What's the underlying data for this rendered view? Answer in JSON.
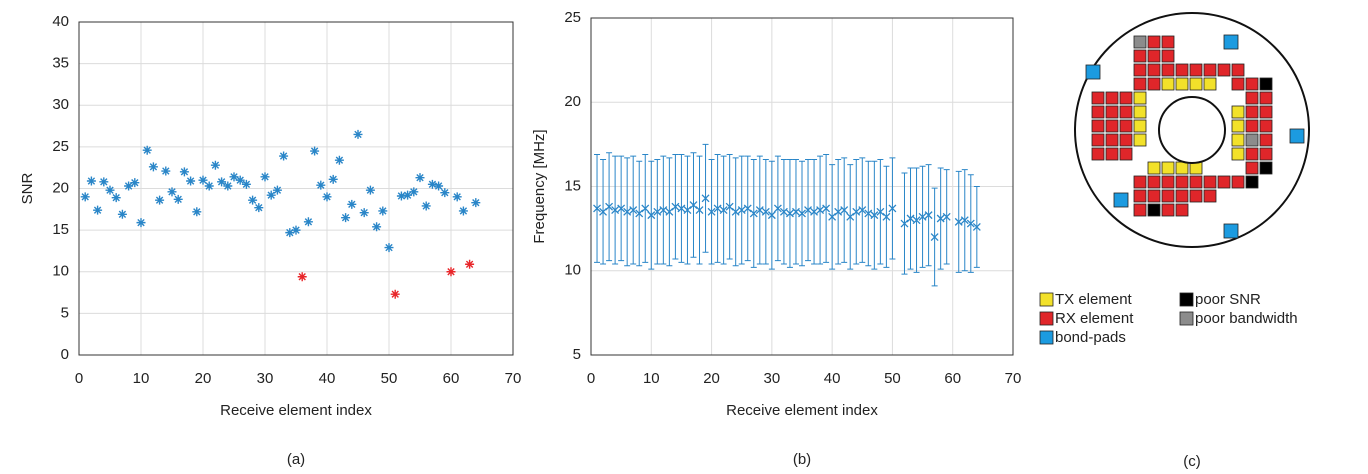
{
  "chart_data": [
    {
      "type": "scatter",
      "caption": "(a)",
      "x_label": "Receive element index",
      "y_label": "SNR",
      "xlim": [
        0,
        70
      ],
      "xticks": [
        0,
        10,
        20,
        30,
        40,
        50,
        60,
        70
      ],
      "ylim": [
        0,
        40
      ],
      "yticks": [
        0,
        5,
        10,
        15,
        20,
        25,
        30,
        35,
        40
      ],
      "grid": true,
      "series": [
        {
          "color": "#2a86c8",
          "x": [
            1,
            2,
            3,
            4,
            5,
            6,
            7,
            8,
            9,
            10,
            11,
            12,
            13,
            14,
            15,
            16,
            17,
            18,
            19,
            20,
            21,
            22,
            23,
            24,
            25,
            26,
            27,
            28,
            29,
            30,
            31,
            32,
            33,
            34,
            35,
            37,
            38,
            39,
            40,
            41,
            42,
            43,
            44,
            45,
            46,
            47,
            48,
            49,
            50,
            52,
            53,
            54,
            55,
            56,
            57,
            58,
            59,
            61,
            62,
            64
          ],
          "values": [
            19.0,
            20.9,
            17.4,
            20.8,
            19.8,
            18.9,
            16.9,
            20.3,
            20.7,
            15.9,
            24.6,
            22.6,
            18.6,
            22.1,
            19.6,
            18.7,
            22.0,
            20.9,
            17.2,
            21.0,
            20.3,
            22.8,
            20.8,
            20.3,
            21.4,
            21.0,
            20.5,
            18.6,
            17.7,
            21.4,
            19.2,
            19.8,
            23.9,
            14.7,
            15.0,
            16.0,
            24.5,
            20.4,
            19.0,
            21.1,
            23.4,
            16.5,
            18.1,
            26.5,
            17.1,
            19.8,
            15.4,
            17.3,
            12.9,
            19.1,
            19.2,
            19.6,
            21.3,
            17.9,
            20.5,
            20.3,
            19.5,
            19.0,
            17.3,
            18.3
          ]
        },
        {
          "color": "#e8262a",
          "x": [
            36,
            51,
            60,
            63
          ],
          "values": [
            9.4,
            7.3,
            10.0,
            10.9
          ]
        }
      ]
    },
    {
      "type": "errorbar",
      "caption": "(b)",
      "x_label": "Receive element index",
      "y_label": "Frequency [MHz]",
      "xlim": [
        0,
        70
      ],
      "xticks": [
        0,
        10,
        20,
        30,
        40,
        50,
        60,
        70
      ],
      "ylim": [
        5,
        25
      ],
      "yticks": [
        5,
        10,
        15,
        20,
        25
      ],
      "grid": true,
      "series": [
        {
          "color": "#2a86c8",
          "x": [
            1,
            2,
            3,
            4,
            5,
            6,
            7,
            8,
            9,
            10,
            11,
            12,
            13,
            14,
            15,
            16,
            17,
            18,
            19,
            20,
            21,
            22,
            23,
            24,
            25,
            26,
            27,
            28,
            29,
            30,
            31,
            32,
            33,
            34,
            35,
            36,
            37,
            38,
            39,
            40,
            41,
            42,
            43,
            44,
            45,
            46,
            47,
            48,
            49,
            50,
            52,
            53,
            54,
            55,
            56,
            57,
            58,
            59,
            61,
            62,
            63,
            64
          ],
          "values": [
            13.7,
            13.5,
            13.8,
            13.6,
            13.7,
            13.5,
            13.6,
            13.4,
            13.7,
            13.3,
            13.5,
            13.6,
            13.5,
            13.8,
            13.7,
            13.6,
            13.9,
            13.6,
            14.3,
            13.5,
            13.7,
            13.6,
            13.8,
            13.5,
            13.6,
            13.7,
            13.4,
            13.6,
            13.5,
            13.3,
            13.7,
            13.5,
            13.4,
            13.5,
            13.4,
            13.6,
            13.5,
            13.6,
            13.7,
            13.2,
            13.5,
            13.6,
            13.2,
            13.5,
            13.6,
            13.4,
            13.3,
            13.5,
            13.2,
            13.7,
            12.8,
            13.1,
            13.0,
            13.2,
            13.3,
            12.0,
            13.1,
            13.2,
            12.9,
            13.0,
            12.8,
            12.6
          ],
          "errors": [
            3.2,
            3.1,
            3.2,
            3.2,
            3.1,
            3.2,
            3.2,
            3.1,
            3.2,
            3.2,
            3.1,
            3.2,
            3.2,
            3.1,
            3.2,
            3.2,
            3.1,
            3.2,
            3.2,
            3.1,
            3.2,
            3.2,
            3.1,
            3.2,
            3.2,
            3.1,
            3.2,
            3.2,
            3.1,
            3.2,
            3.1,
            3.1,
            3.2,
            3.1,
            3.1,
            3.0,
            3.1,
            3.2,
            3.2,
            3.1,
            3.1,
            3.1,
            3.1,
            3.1,
            3.1,
            3.1,
            3.2,
            3.1,
            3.0,
            3.0,
            3.0,
            3.0,
            3.1,
            3.0,
            3.0,
            2.9,
            3.0,
            2.8,
            3.0,
            3.0,
            2.9,
            2.4
          ]
        }
      ]
    }
  ],
  "diagram": {
    "caption": "(c)",
    "legend": [
      {
        "label": "TX element",
        "color": "#f2e12a"
      },
      {
        "label": "RX element",
        "color": "#e0262a"
      },
      {
        "label": "bond-pads",
        "color": "#1c9be0"
      },
      {
        "label": "poor SNR",
        "color": "#000000"
      },
      {
        "label": "poor bandwidth",
        "color": "#8c8c8c"
      }
    ]
  }
}
